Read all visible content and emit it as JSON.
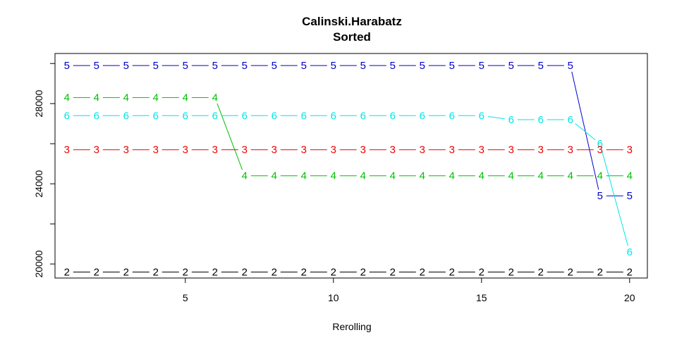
{
  "chart_data": {
    "type": "line",
    "title": "Calinski.Harabatz",
    "subtitle": "Sorted",
    "xlabel": "Rerolling",
    "ylabel": "",
    "xlim": [
      0.6,
      20.6
    ],
    "ylim": [
      19300,
      30500
    ],
    "x_ticks": [
      5,
      10,
      15,
      20
    ],
    "y_ticks": [
      20000,
      24000,
      28000
    ],
    "grid": false,
    "x": [
      1,
      2,
      3,
      4,
      5,
      6,
      7,
      8,
      9,
      10,
      11,
      12,
      13,
      14,
      15,
      16,
      17,
      18,
      19,
      20
    ],
    "series": [
      {
        "name": "5",
        "color": "#0000cd",
        "values": [
          29900,
          29900,
          29900,
          29900,
          29900,
          29900,
          29900,
          29900,
          29900,
          29900,
          29900,
          29900,
          29900,
          29900,
          29900,
          29900,
          29900,
          29900,
          23400,
          23400
        ]
      },
      {
        "name": "4",
        "color": "#00c000",
        "values": [
          28300,
          28300,
          28300,
          28300,
          28300,
          28300,
          24400,
          24400,
          24400,
          24400,
          24400,
          24400,
          24400,
          24400,
          24400,
          24400,
          24400,
          24400,
          24400,
          24400
        ]
      },
      {
        "name": "6",
        "color": "#00e5e5",
        "values": [
          27400,
          27400,
          27400,
          27400,
          27400,
          27400,
          27400,
          27400,
          27400,
          27400,
          27400,
          27400,
          27400,
          27400,
          27400,
          27200,
          27200,
          27200,
          26000,
          20600
        ]
      },
      {
        "name": "3",
        "color": "#ee0000",
        "values": [
          25700,
          25700,
          25700,
          25700,
          25700,
          25700,
          25700,
          25700,
          25700,
          25700,
          25700,
          25700,
          25700,
          25700,
          25700,
          25700,
          25700,
          25700,
          25700,
          25700
        ]
      },
      {
        "name": "2",
        "color": "#000000",
        "values": [
          19600,
          19600,
          19600,
          19600,
          19600,
          19600,
          19600,
          19600,
          19600,
          19600,
          19600,
          19600,
          19600,
          19600,
          19600,
          19600,
          19600,
          19600,
          19600,
          19600
        ]
      }
    ]
  }
}
